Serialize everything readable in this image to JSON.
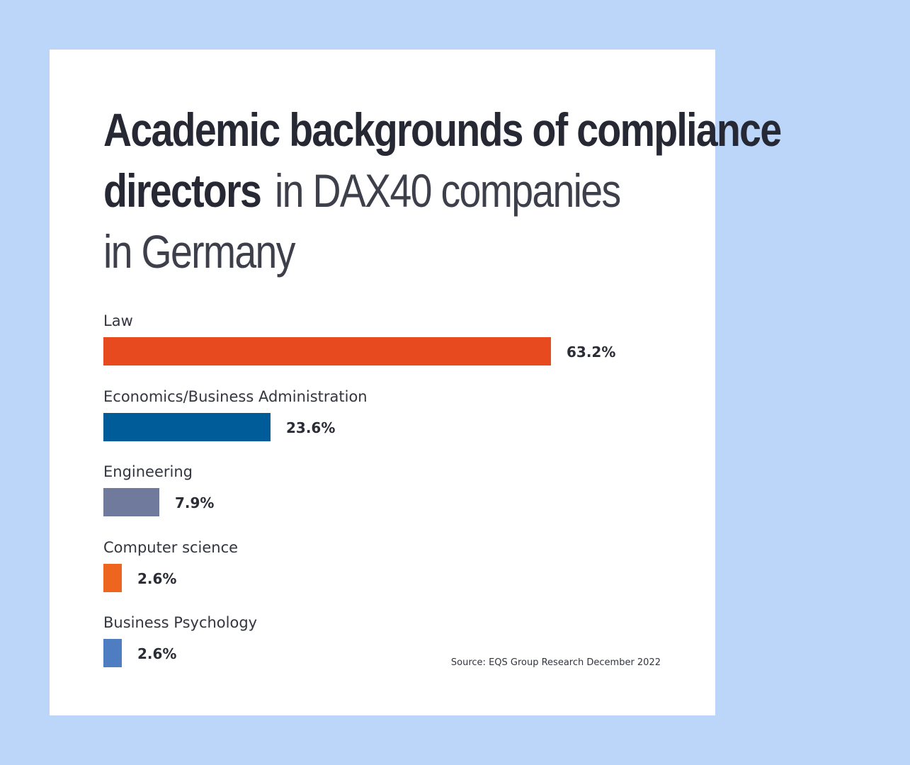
{
  "title": {
    "line1_bold": "Academic backgrounds of compliance",
    "line2_bold": "directors",
    "line2_light": "in DAX40 companies",
    "line3_light": "in Germany"
  },
  "source": "Source: EQS Group Research December 2022",
  "colors": {
    "background": "#bcd6fa",
    "card": "#ffffff"
  },
  "chart_data": {
    "type": "bar",
    "orientation": "horizontal",
    "title": "Academic backgrounds of compliance directors in DAX40 companies in Germany",
    "categories": [
      "Law",
      "Economics/Business Administration",
      "Engineering",
      "Computer science",
      "Business Psychology"
    ],
    "values": [
      63.2,
      23.6,
      7.9,
      2.6,
      2.6
    ],
    "value_labels": [
      "63.2%",
      "23.6%",
      "7.9%",
      "2.6%",
      "2.6%"
    ],
    "bar_colors": [
      "#e84a20",
      "#005c99",
      "#6f7a9c",
      "#ee6520",
      "#4f7dc2"
    ],
    "xlim": [
      0,
      100
    ],
    "grid": false,
    "legend": "none"
  }
}
